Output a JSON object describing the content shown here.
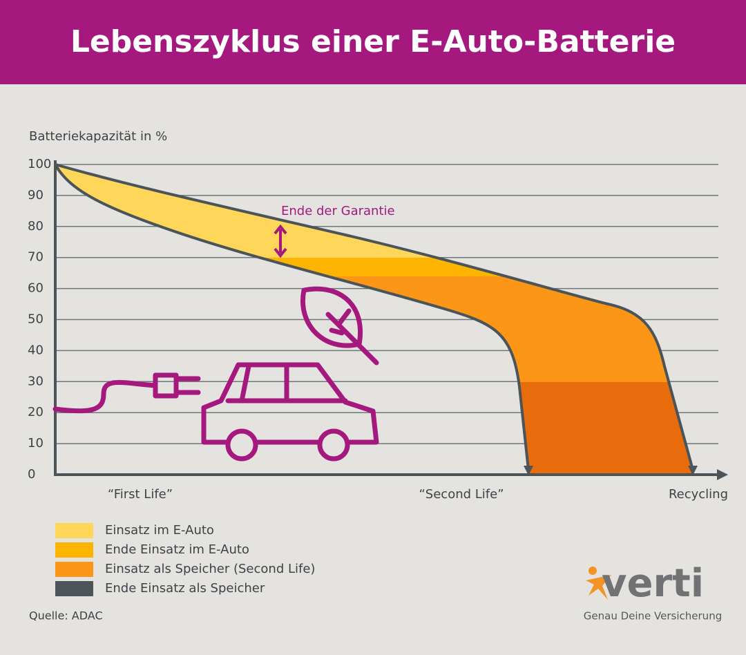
{
  "header": {
    "title": "Lebenszyklus einer E-Auto-Batterie"
  },
  "chart": {
    "axis_label": "Batteriekapazität in %",
    "yticks": [
      0,
      10,
      20,
      30,
      40,
      50,
      60,
      70,
      80,
      90,
      100
    ],
    "phases": [
      "“First Life”",
      "“Second Life”",
      "Recycling"
    ],
    "annotation": "Ende der Garantie"
  },
  "legend": [
    {
      "label": "Einsatz im E-Auto",
      "color": "#fdd65a"
    },
    {
      "label": "Ende Einsatz im E-Auto",
      "color": "#fdb400"
    },
    {
      "label": "Einsatz als Speicher (Second Life)",
      "color": "#fb9616"
    },
    {
      "label": "Ende Einsatz als Speicher",
      "color": "#4b5459"
    }
  ],
  "source": "Quelle: ADAC",
  "logo": {
    "name": "verti",
    "tagline": "Genau Deine Versicherung"
  }
}
